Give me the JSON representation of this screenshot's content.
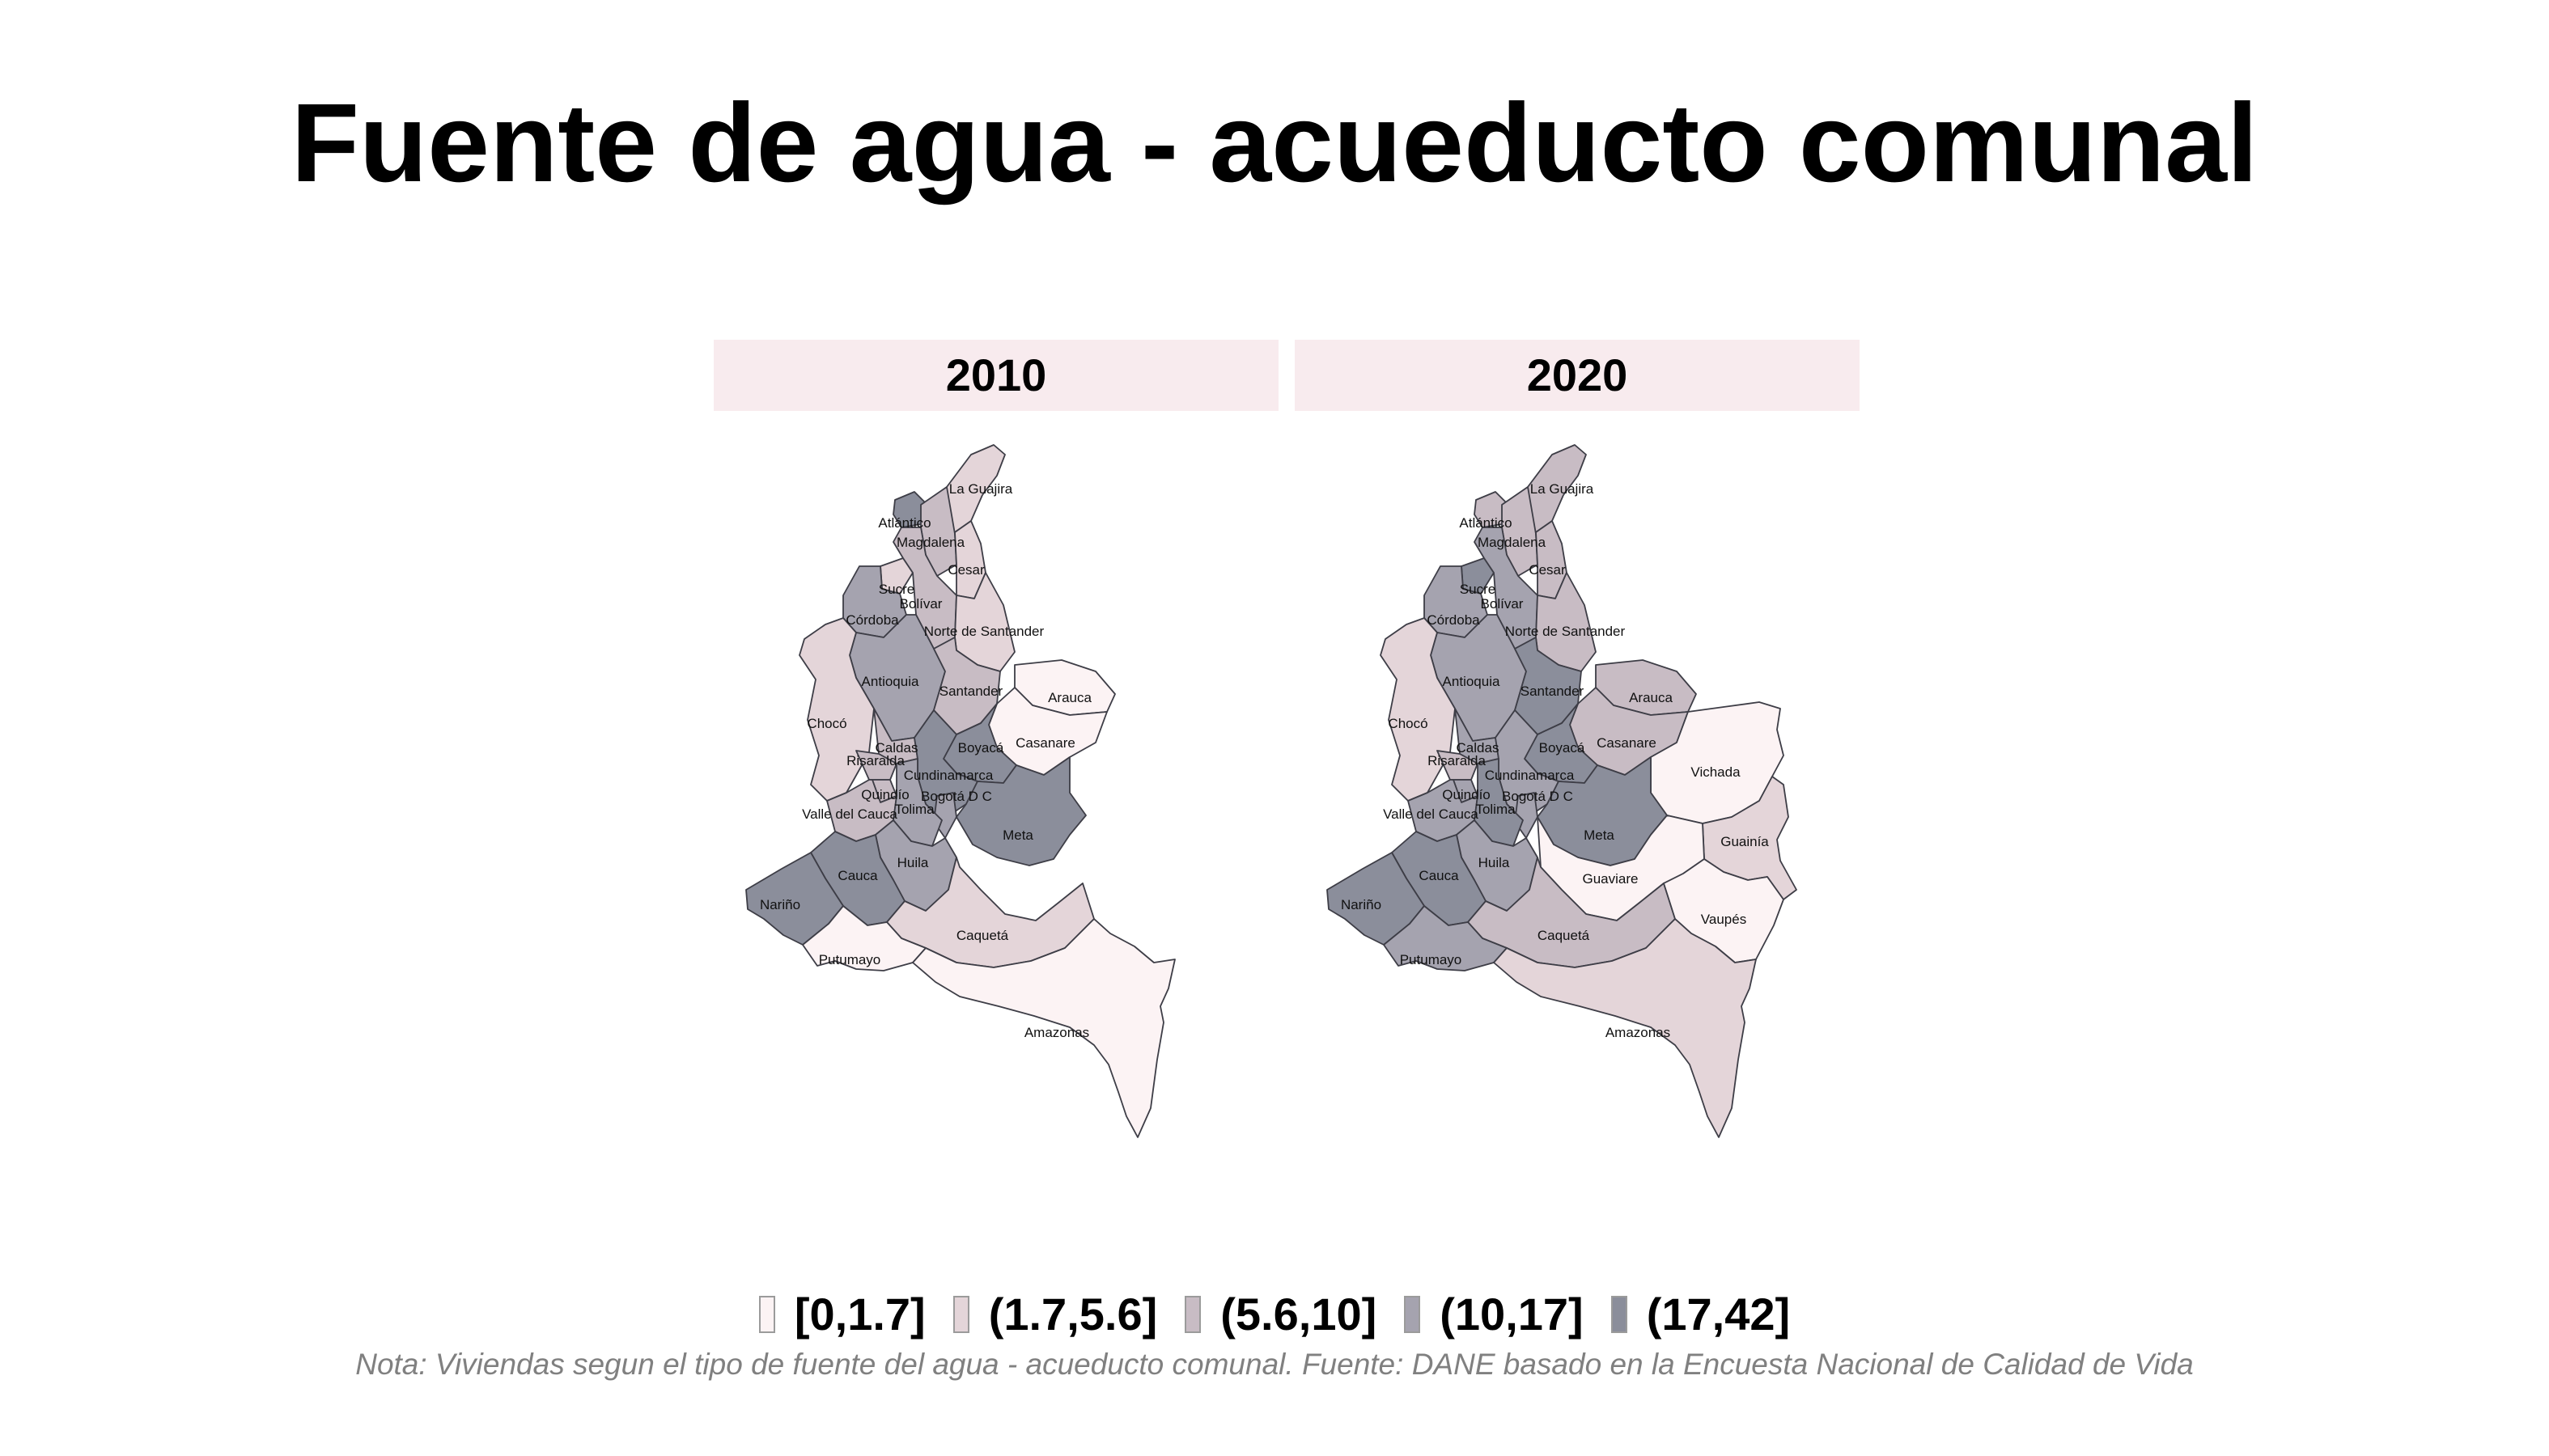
{
  "title": "Fuente de agua - acueducto comunal",
  "note": "Nota: Viviendas segun el tipo de fuente del agua - acueducto comunal. Fuente: DANE basado en la Encuesta Nacional de Calidad de Vida",
  "legend": [
    {
      "label": "[0,1.7]",
      "color": "#fcf3f4"
    },
    {
      "label": "(1.7,5.6]",
      "color": "#e4d5d9"
    },
    {
      "label": "(5.6,10]",
      "color": "#c8bcc4"
    },
    {
      "label": "(10,17]",
      "color": "#a5a3af"
    },
    {
      "label": "(17,42]",
      "color": "#8b8e9b"
    }
  ],
  "panels": [
    {
      "year": "2010",
      "departments": [
        {
          "name": "La Guajira",
          "class": 2
        },
        {
          "name": "Atlántico",
          "class": 5
        },
        {
          "name": "Magdalena",
          "class": 3
        },
        {
          "name": "Cesar",
          "class": 2
        },
        {
          "name": "Sucre",
          "class": 2
        },
        {
          "name": "Bolívar",
          "class": 3
        },
        {
          "name": "Córdoba",
          "class": 4
        },
        {
          "name": "Norte de Santander",
          "class": 2
        },
        {
          "name": "Antioquia",
          "class": 4
        },
        {
          "name": "Santander",
          "class": 3
        },
        {
          "name": "Arauca",
          "class": 1
        },
        {
          "name": "Casanare",
          "class": 1
        },
        {
          "name": "Chocó",
          "class": 2
        },
        {
          "name": "Caldas",
          "class": 3
        },
        {
          "name": "Risaralda",
          "class": 3
        },
        {
          "name": "Boyacá",
          "class": 5
        },
        {
          "name": "Cundinamarca",
          "class": 5
        },
        {
          "name": "Quindío",
          "class": 3
        },
        {
          "name": "Bogotá D C",
          "class": 4
        },
        {
          "name": "Valle del Cauca",
          "class": 3
        },
        {
          "name": "Tolima",
          "class": 4
        },
        {
          "name": "Meta",
          "class": 5
        },
        {
          "name": "Huila",
          "class": 4
        },
        {
          "name": "Cauca",
          "class": 5
        },
        {
          "name": "Nariño",
          "class": 5
        },
        {
          "name": "Caquetá",
          "class": 2
        },
        {
          "name": "Putumayo",
          "class": 1
        },
        {
          "name": "Amazonas",
          "class": 1
        }
      ]
    },
    {
      "year": "2020",
      "departments": [
        {
          "name": "La Guajira",
          "class": 3
        },
        {
          "name": "Atlántico",
          "class": 3
        },
        {
          "name": "Magdalena",
          "class": 3
        },
        {
          "name": "Cesar",
          "class": 3
        },
        {
          "name": "Sucre",
          "class": 5
        },
        {
          "name": "Bolívar",
          "class": 4
        },
        {
          "name": "Córdoba",
          "class": 4
        },
        {
          "name": "Norte de Santander",
          "class": 3
        },
        {
          "name": "Antioquia",
          "class": 4
        },
        {
          "name": "Santander",
          "class": 5
        },
        {
          "name": "Arauca",
          "class": 3
        },
        {
          "name": "Casanare",
          "class": 3
        },
        {
          "name": "Vichada",
          "class": 1
        },
        {
          "name": "Chocó",
          "class": 2
        },
        {
          "name": "Caldas",
          "class": 4
        },
        {
          "name": "Risaralda",
          "class": 3
        },
        {
          "name": "Boyacá",
          "class": 5
        },
        {
          "name": "Cundinamarca",
          "class": 4
        },
        {
          "name": "Quindío",
          "class": 4
        },
        {
          "name": "Bogotá D C",
          "class": 4
        },
        {
          "name": "Valle del Cauca",
          "class": 4
        },
        {
          "name": "Tolima",
          "class": 5
        },
        {
          "name": "Meta",
          "class": 5
        },
        {
          "name": "Guainía",
          "class": 2
        },
        {
          "name": "Guaviare",
          "class": 1
        },
        {
          "name": "Huila",
          "class": 4
        },
        {
          "name": "Cauca",
          "class": 5
        },
        {
          "name": "Nariño",
          "class": 5
        },
        {
          "name": "Caquetá",
          "class": 3
        },
        {
          "name": "Vaupés",
          "class": 1
        },
        {
          "name": "Putumayo",
          "class": 4
        },
        {
          "name": "Amazonas",
          "class": 2
        }
      ]
    }
  ]
}
